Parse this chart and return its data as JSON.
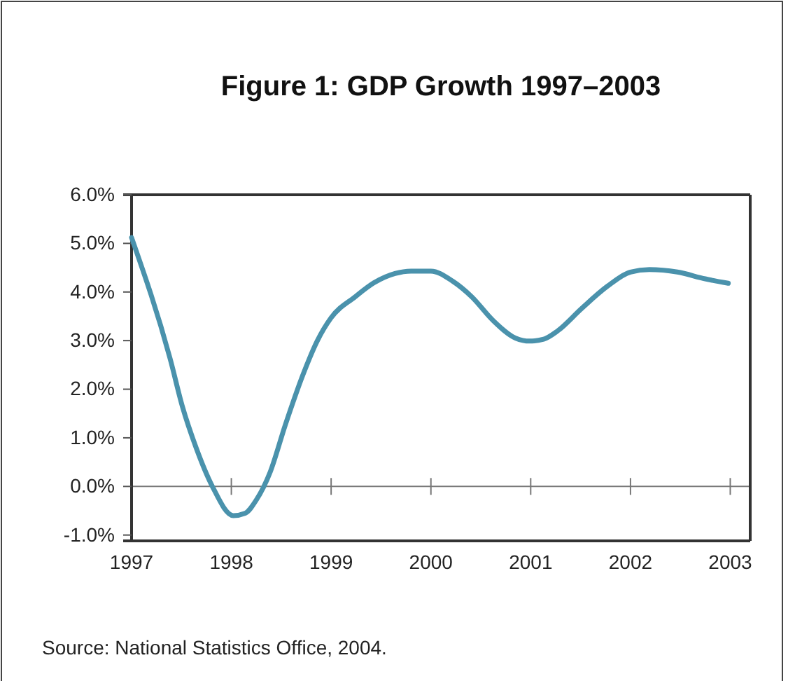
{
  "chart_data": {
    "type": "line",
    "title": "Figure 1: GDP Growth 1997–2003",
    "annotations": [
      "Source: National Statistics Office, 2004."
    ],
    "series": [
      {
        "color": "#4a92ac",
        "x": [
          1997.0,
          1997.39,
          1997.51,
          1997.65,
          1997.81,
          1998.02,
          1998.14,
          1998.25,
          1998.39,
          1998.54,
          1998.72,
          1998.86,
          1999.0,
          1999.24,
          1999.43,
          1999.64,
          1999.8,
          2000.0,
          2000.22,
          2000.41,
          2000.62,
          2000.85,
          2000.99,
          2001.13,
          2001.27,
          2001.51,
          2001.77,
          2002.0,
          2002.19,
          2002.47,
          2002.75,
          2002.98
        ],
        "values": [
          5.12,
          2.6,
          1.64,
          0.78,
          0.0,
          -0.6,
          -0.55,
          -0.28,
          0.3,
          1.26,
          2.31,
          2.99,
          3.47,
          3.9,
          4.19,
          4.38,
          4.43,
          4.43,
          4.22,
          3.9,
          3.42,
          3.05,
          2.99,
          3.03,
          3.2,
          3.66,
          4.12,
          4.41,
          4.46,
          4.41,
          4.27,
          4.18
        ]
      }
    ],
    "xlim": [
      1997,
      2003.2
    ],
    "xticks": [
      1997,
      1998,
      1999,
      2000,
      2001,
      2002,
      2003
    ],
    "ylim": [
      -1.12,
      6
    ],
    "yticks": [
      {
        "value": -1,
        "label": "-1.0%"
      },
      {
        "value": 0,
        "label": "0.0%"
      },
      {
        "value": 1,
        "label": "1.0%"
      },
      {
        "value": 2,
        "label": "2.0%"
      },
      {
        "value": 3,
        "label": "3.0%"
      },
      {
        "value": 4,
        "label": "4.0%"
      },
      {
        "value": 5,
        "label": "5.0%"
      },
      {
        "value": 6,
        "label": "6.0%"
      }
    ],
    "ref_lines": [
      {
        "axis": "y",
        "value": 0,
        "color": "#777777"
      }
    ],
    "grid": false,
    "marker": "none",
    "line_style": "solid"
  }
}
